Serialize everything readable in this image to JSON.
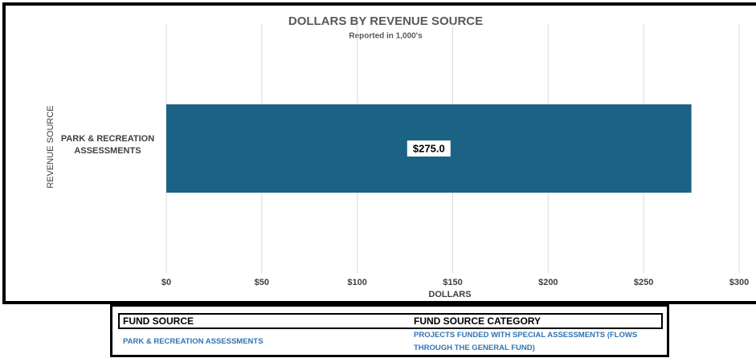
{
  "chart_data": {
    "type": "hbar",
    "title": "DOLLARS BY REVENUE SOURCE",
    "subtitle": "Reported in 1,000's",
    "x_label": "DOLLARS",
    "y_label": "REVENUE SOURCE",
    "categories": [
      "PARK & RECREATION ASSESSMENTS"
    ],
    "values": [
      275
    ],
    "value_labels": [
      "$275.0"
    ],
    "color": "#1b6285",
    "grid": true,
    "xlim": [
      0,
      300
    ],
    "xticks": [
      {
        "value": 0,
        "label": "$0"
      },
      {
        "value": 50,
        "label": "$50"
      },
      {
        "value": 100,
        "label": "$100"
      },
      {
        "value": 150,
        "label": "$150"
      },
      {
        "value": 200,
        "label": "$200"
      },
      {
        "value": 250,
        "label": "$250"
      },
      {
        "value": 300,
        "label": "$300"
      }
    ]
  },
  "fund_table": {
    "headers": [
      "FUND SOURCE",
      "FUND SOURCE CATEGORY"
    ],
    "rows": [
      [
        "PARK & RECREATION ASSESSMENTS",
        "PROJECTS FUNDED WITH SPECIAL ASSESSMENTS (FLOWS THROUGH THE GENERAL FUND)"
      ]
    ]
  }
}
